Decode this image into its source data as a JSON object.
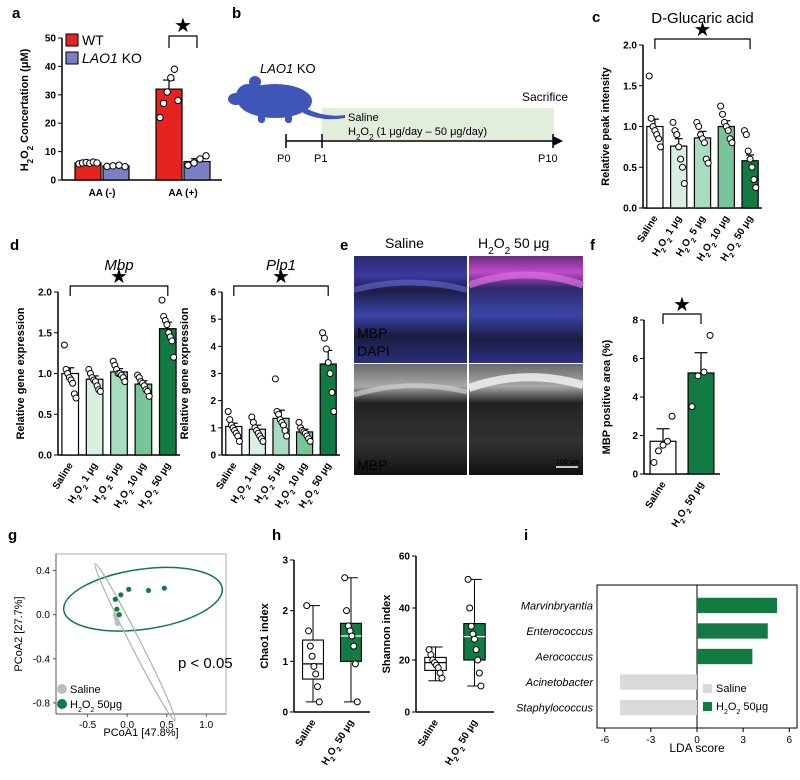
{
  "colors": {
    "wt_red": "#e52421",
    "ko_blue": "#7a7fc4",
    "light_green": "#d8efe2",
    "mid_green1": "#a7dcc1",
    "mid_green2": "#79c59a",
    "mid_green3": "#3faa67",
    "dark_green": "#127a43",
    "timeline_bg": "#e1eedb",
    "mouse": "#3f55b7",
    "mbp_magenta": "#d44fd4",
    "dapi_blue": "#3b49b8",
    "gray": "#d9d9d9"
  },
  "star_symbol": "★",
  "chart_data": [
    {
      "panel": "a",
      "type": "bar",
      "groups": [
        "AA (-)",
        "AA (+)"
      ],
      "series": [
        {
          "name": "WT",
          "name_parts": [
            "WT",
            ""
          ],
          "values": [
            6.0,
            32.0
          ],
          "errors": [
            0.4,
            3.2
          ],
          "points": [
            [
              5.7,
              6.0,
              6.2,
              5.9,
              6.3,
              6.0
            ],
            [
              22,
              27,
              31,
              36,
              39,
              28
            ]
          ]
        },
        {
          "name": "LAO1 KO",
          "name_parts": [
            "LAO1",
            " KO"
          ],
          "values": [
            5.0,
            6.5
          ],
          "errors": [
            0.3,
            1.0
          ],
          "points": [
            [
              4.8,
              5.0,
              5.2,
              4.7
            ],
            [
              5.2,
              6.0,
              7.4,
              8.5
            ]
          ]
        }
      ],
      "ylabel": "H2O2 Concertation (μM)",
      "ylabel_parts": [
        "H",
        "2",
        "O",
        "2",
        " Concertation (μM)"
      ],
      "ylim": [
        0,
        50
      ],
      "yticks": [
        "0",
        "10",
        "20",
        "30",
        "40",
        "50"
      ],
      "legend": "top-left"
    },
    {
      "panel": "c",
      "type": "bar",
      "title": "D-Glucaric acid",
      "categories": [
        "Saline",
        "H2O2 1 μg",
        "H2O2 5 μg",
        "H2O2 10 μg",
        "H2O2 50 μg"
      ],
      "values": [
        1.0,
        0.76,
        0.86,
        1.0,
        0.58
      ],
      "errors": [
        0.09,
        0.09,
        0.08,
        0.07,
        0.07
      ],
      "points": [
        [
          1.62,
          1.1,
          1.0,
          0.95,
          0.9,
          0.85,
          0.75
        ],
        [
          1.05,
          0.95,
          0.9,
          0.75,
          0.6,
          0.5,
          0.3
        ],
        [
          1.05,
          1.0,
          0.9,
          0.85,
          0.8,
          0.6,
          0.55
        ],
        [
          1.25,
          1.15,
          1.05,
          1.0,
          0.95,
          0.85,
          0.8
        ],
        [
          0.95,
          0.9,
          0.7,
          0.6,
          0.5,
          0.35,
          0.25
        ]
      ],
      "ylabel": "Relative peak intensity",
      "ylim": [
        0,
        2.0
      ],
      "yticks": [
        "0.0",
        "0.5",
        "1.0",
        "1.5",
        "2.0"
      ]
    },
    {
      "panel": "d1",
      "type": "bar",
      "title": "Mbp",
      "categories": [
        "Saline",
        "H2O2 1 μg",
        "H2O2 5 μg",
        "H2O2 10 μg",
        "H2O2 50 μg"
      ],
      "values": [
        1.0,
        0.93,
        1.02,
        0.87,
        1.55
      ],
      "errors": [
        0.07,
        0.04,
        0.04,
        0.04,
        0.08
      ],
      "points": [
        [
          1.35,
          1.05,
          1.0,
          0.95,
          0.92,
          0.88,
          0.75,
          0.7
        ],
        [
          1.05,
          1.0,
          0.95,
          0.92,
          0.9,
          0.85,
          0.8,
          0.78
        ],
        [
          1.15,
          1.1,
          1.05,
          1.0,
          1.0,
          0.98,
          0.95,
          0.9
        ],
        [
          0.98,
          0.95,
          0.9,
          0.88,
          0.85,
          0.8,
          0.78,
          0.72
        ],
        [
          1.9,
          1.7,
          1.65,
          1.6,
          1.5,
          1.45,
          1.4,
          1.2
        ]
      ],
      "ylabel": "Relative gene expression",
      "ylim": [
        0,
        2.0
      ],
      "yticks": [
        "0.0",
        "0.5",
        "1.0",
        "1.5",
        "2.0"
      ]
    },
    {
      "panel": "d2",
      "type": "bar",
      "title": "Plp1",
      "categories": [
        "Saline",
        "H2O2 1 μg",
        "H2O2 5 μg",
        "H2O2 10 μg",
        "H2O2 50 μg"
      ],
      "values": [
        1.05,
        0.95,
        1.35,
        0.85,
        3.35
      ],
      "errors": [
        0.12,
        0.15,
        0.3,
        0.1,
        0.5
      ],
      "points": [
        [
          1.6,
          1.3,
          1.1,
          1.0,
          0.9,
          0.8,
          0.7,
          0.5
        ],
        [
          1.4,
          1.2,
          1.0,
          0.9,
          0.8,
          0.7,
          0.6,
          0.5
        ],
        [
          2.8,
          1.6,
          1.5,
          1.3,
          1.2,
          1.1,
          0.9,
          0.7
        ],
        [
          1.2,
          1.0,
          0.9,
          0.85,
          0.8,
          0.7,
          0.6,
          0.5
        ],
        [
          4.5,
          4.3,
          3.9,
          3.4,
          3.0,
          2.3,
          1.6
        ]
      ],
      "ylabel": "Relative gene expression",
      "ylim": [
        0,
        6
      ],
      "yticks": [
        "0",
        "1",
        "2",
        "3",
        "4",
        "5",
        "6"
      ]
    },
    {
      "panel": "f",
      "type": "bar",
      "categories": [
        "Saline",
        "H2O2 50 μg"
      ],
      "values": [
        1.7,
        5.25
      ],
      "errors": [
        0.65,
        1.05
      ],
      "points": [
        [
          0.6,
          1.2,
          1.5,
          1.7,
          3.0
        ],
        [
          3.5,
          5.1,
          5.3,
          7.2
        ]
      ],
      "ylabel": "MBP positive area (%)",
      "ylim": [
        0,
        8
      ],
      "yticks": [
        "0",
        "2",
        "4",
        "6",
        "8"
      ]
    },
    {
      "panel": "g",
      "type": "scatter",
      "xlabel": "PCoA1 [47.8%]",
      "ylabel": "PCoA2 [27.7%]",
      "xlim": [
        -0.9,
        1.25
      ],
      "ylim": [
        -0.9,
        0.55
      ],
      "xticks": [
        "-0.5",
        "0.0",
        "0.5",
        "1.0"
      ],
      "yticks": [
        "0.4",
        "0.0",
        "-0.4",
        "-0.8"
      ],
      "annotation": "p < 0.05",
      "series": [
        {
          "name": "Saline",
          "points": [
            [
              -0.15,
              0.0
            ],
            [
              -0.14,
              -0.02
            ],
            [
              -0.13,
              -0.05
            ],
            [
              -0.12,
              -0.08
            ]
          ]
        },
        {
          "name": "H2O2 50μg",
          "points": [
            [
              -0.15,
              0.14
            ],
            [
              -0.08,
              0.18
            ],
            [
              0.02,
              0.23
            ],
            [
              0.27,
              0.22
            ],
            [
              0.47,
              0.24
            ],
            [
              -0.13,
              0.05
            ],
            [
              -0.1,
              0.0
            ]
          ]
        }
      ],
      "legend": "bottom-left"
    },
    {
      "panel": "h1",
      "type": "box",
      "categories": [
        "Saline",
        "H2O2 50 μg"
      ],
      "boxes": [
        {
          "min": 0.2,
          "q1": 0.65,
          "median": 0.95,
          "q3": 1.42,
          "max": 2.1
        },
        {
          "min": 0.2,
          "q1": 1.0,
          "median": 1.5,
          "q3": 1.75,
          "max": 2.65
        }
      ],
      "points": [
        [
          2.1,
          1.6,
          1.3,
          1.1,
          0.9,
          0.75,
          0.5,
          0.2
        ],
        [
          2.65,
          2.0,
          1.7,
          1.6,
          1.5,
          1.3,
          0.95,
          0.2
        ]
      ],
      "ylabel": "Chao1 index",
      "ylim": [
        0,
        3
      ],
      "yticks": [
        "0",
        "1",
        "2",
        "3"
      ]
    },
    {
      "panel": "h2",
      "type": "box",
      "categories": [
        "Saline",
        "H2O2 50 μg"
      ],
      "boxes": [
        {
          "min": 12,
          "q1": 16,
          "median": 19,
          "q3": 21,
          "max": 25
        },
        {
          "min": 10,
          "q1": 20,
          "median": 29,
          "q3": 34,
          "max": 51
        }
      ],
      "points": [
        [
          24,
          22,
          20,
          19,
          18,
          17,
          15,
          13
        ],
        [
          51,
          40,
          33,
          30,
          28,
          24,
          20,
          15,
          10
        ]
      ],
      "ylabel": "Shannon index",
      "ylim": [
        0,
        60
      ],
      "yticks": [
        "0",
        "20",
        "40",
        "60"
      ]
    },
    {
      "panel": "i",
      "type": "bar",
      "orientation": "horizontal",
      "categories": [
        "Marvinbryantia",
        "Enterococcus",
        "Aerococcus",
        "Acinetobacter",
        "Staphylococcus"
      ],
      "values": [
        5.2,
        4.6,
        3.6,
        -5.0,
        -5.0
      ],
      "groups": [
        "H2O2 50μg",
        "H2O2 50μg",
        "H2O2 50μg",
        "Saline",
        "Saline"
      ],
      "xlabel": "LDA score",
      "xlim": [
        -6.5,
        6.5
      ],
      "xticks": [
        "-6",
        "-3",
        "0",
        "3",
        "6"
      ],
      "legend": [
        {
          "name": "Saline"
        },
        {
          "name": "H2O2 50μg"
        }
      ],
      "legend_position": "bottom-right"
    }
  ],
  "diagram_b": {
    "mouse_label": "LAO1 KO",
    "mouse_label_parts": [
      "LAO1",
      " KO"
    ],
    "treatment_line1": "Saline",
    "treatment_line2": "H2O2 (1 μg/day – 50 μg/day)",
    "treatment_parts": [
      "H",
      "2",
      "O",
      "2",
      " (1 μg/day – 50 μg/day)"
    ],
    "endpoint": "Sacrifice",
    "timepoints": [
      "P0",
      "P1",
      "P10"
    ]
  },
  "panel_e": {
    "col_left": "Saline",
    "col_right": "H2O2 50 μg",
    "col_right_parts": [
      "H",
      "2",
      "O",
      "2",
      " 50 μg"
    ],
    "stain_mbp": "MBP",
    "stain_dapi": "DAPI",
    "stain_mbp_gray": "MBP",
    "scale_bar": "100 μm"
  },
  "panel_labels": [
    "a",
    "b",
    "c",
    "d",
    "e",
    "f",
    "g",
    "h",
    "i"
  ]
}
